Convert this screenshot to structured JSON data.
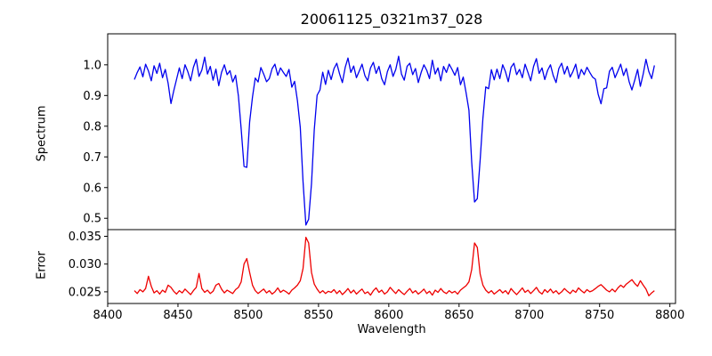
{
  "chart_data": {
    "type": "line",
    "title": "20061125_0321m37_028",
    "xlabel": "Wavelength",
    "xlim": [
      8400,
      8804
    ],
    "xticks": {
      "values": [
        8400,
        8450,
        8500,
        8550,
        8600,
        8650,
        8700,
        8750,
        8800
      ],
      "labels": [
        "8400",
        "8450",
        "8500",
        "8550",
        "8600",
        "8650",
        "8700",
        "8750",
        "8800"
      ]
    },
    "x_start": 8419,
    "x_step": 2,
    "grid": false,
    "legend": "none",
    "panels": [
      {
        "name": "spectrum",
        "ylabel": "Spectrum",
        "color": "#0000ee",
        "ylim": [
          0.463,
          1.101
        ],
        "yticks": {
          "values": [
            0.5,
            0.6,
            0.7,
            0.8,
            0.9,
            1.0
          ],
          "labels": [
            "0.5",
            "0.6",
            "0.7",
            "0.8",
            "0.9",
            "1.0"
          ]
        },
        "absorption_lines": [
          {
            "wavelength": 8446,
            "depth_flux": 0.87
          },
          {
            "wavelength": 8498,
            "depth_flux": 0.66
          },
          {
            "wavelength": 8542,
            "depth_flux": 0.48
          },
          {
            "wavelength": 8662,
            "depth_flux": 0.55
          },
          {
            "wavelength": 8751,
            "depth_flux": 0.87
          }
        ],
        "values": [
          0.952,
          0.975,
          0.993,
          0.961,
          1.002,
          0.98,
          0.948,
          0.997,
          0.972,
          1.005,
          0.958,
          0.985,
          0.94,
          0.874,
          0.915,
          0.953,
          0.99,
          0.955,
          1.0,
          0.978,
          0.948,
          0.992,
          1.018,
          0.962,
          0.983,
          1.025,
          0.97,
          0.995,
          0.95,
          0.986,
          0.932,
          0.975,
          1.0,
          0.968,
          0.981,
          0.944,
          0.966,
          0.898,
          0.79,
          0.669,
          0.666,
          0.814,
          0.895,
          0.957,
          0.944,
          0.991,
          0.97,
          0.945,
          0.955,
          0.988,
          1.002,
          0.966,
          0.99,
          0.975,
          0.962,
          0.985,
          0.927,
          0.946,
          0.883,
          0.796,
          0.619,
          0.478,
          0.497,
          0.613,
          0.788,
          0.901,
          0.918,
          0.976,
          0.936,
          0.982,
          0.952,
          0.988,
          1.005,
          0.97,
          0.942,
          0.992,
          1.022,
          0.975,
          0.996,
          0.958,
          0.98,
          1.002,
          0.965,
          0.948,
          0.99,
          1.008,
          0.972,
          0.995,
          0.955,
          0.935,
          0.978,
          1.0,
          0.962,
          0.985,
          1.028,
          0.97,
          0.95,
          0.995,
          1.005,
          0.968,
          0.988,
          0.942,
          0.975,
          1.0,
          0.982,
          0.955,
          1.015,
          0.97,
          0.99,
          0.948,
          0.995,
          0.975,
          1.002,
          0.985,
          0.966,
          0.991,
          0.935,
          0.96,
          0.909,
          0.852,
          0.683,
          0.553,
          0.564,
          0.69,
          0.826,
          0.928,
          0.922,
          0.984,
          0.951,
          0.986,
          0.955,
          1.0,
          0.978,
          0.945,
          0.992,
          1.005,
          0.968,
          0.985,
          0.958,
          1.002,
          0.975,
          0.948,
          0.995,
          1.02,
          0.972,
          0.99,
          0.952,
          0.982,
          1.0,
          0.965,
          0.942,
          0.988,
          1.005,
          0.97,
          0.995,
          0.96,
          0.978,
          1.002,
          0.955,
          0.985,
          0.968,
          0.992,
          0.975,
          0.96,
          0.953,
          0.904,
          0.873,
          0.922,
          0.925,
          0.979,
          0.992,
          0.958,
          0.98,
          1.002,
          0.965,
          0.988,
          0.945,
          0.918,
          0.95,
          0.985,
          0.93,
          0.97,
          1.018,
          0.978,
          0.955,
          0.998
        ]
      },
      {
        "name": "error",
        "ylabel": "Error",
        "color": "#ee0000",
        "ylim": [
          0.0229,
          0.0362
        ],
        "yticks": {
          "values": [
            0.025,
            0.03,
            0.035
          ],
          "labels": [
            "0.025",
            "0.030",
            "0.035"
          ]
        },
        "values": [
          0.0252,
          0.0247,
          0.0254,
          0.025,
          0.0256,
          0.0278,
          0.026,
          0.0248,
          0.0252,
          0.0246,
          0.0253,
          0.0249,
          0.0262,
          0.0258,
          0.0251,
          0.0246,
          0.0252,
          0.0248,
          0.0255,
          0.025,
          0.0245,
          0.0252,
          0.0258,
          0.0283,
          0.0256,
          0.0249,
          0.0253,
          0.0247,
          0.0251,
          0.0262,
          0.0265,
          0.0255,
          0.0248,
          0.0253,
          0.025,
          0.0247,
          0.0254,
          0.0258,
          0.0268,
          0.03,
          0.031,
          0.0285,
          0.0262,
          0.0252,
          0.0247,
          0.0251,
          0.0255,
          0.0248,
          0.0252,
          0.0246,
          0.025,
          0.0257,
          0.0249,
          0.0253,
          0.025,
          0.0246,
          0.0253,
          0.0257,
          0.0262,
          0.027,
          0.0292,
          0.0348,
          0.0338,
          0.0285,
          0.0264,
          0.0255,
          0.0248,
          0.0252,
          0.0247,
          0.0251,
          0.0249,
          0.0254,
          0.0247,
          0.0252,
          0.0245,
          0.025,
          0.0256,
          0.0248,
          0.0253,
          0.0246,
          0.0251,
          0.0255,
          0.0247,
          0.025,
          0.0244,
          0.0252,
          0.0257,
          0.0249,
          0.0253,
          0.0246,
          0.025,
          0.0258,
          0.0252,
          0.0247,
          0.0254,
          0.0249,
          0.0245,
          0.0251,
          0.0256,
          0.0248,
          0.0252,
          0.0246,
          0.025,
          0.0255,
          0.0247,
          0.0251,
          0.0244,
          0.0253,
          0.0249,
          0.0256,
          0.025,
          0.0247,
          0.0252,
          0.0248,
          0.0251,
          0.0246,
          0.0253,
          0.0257,
          0.0261,
          0.0268,
          0.029,
          0.0338,
          0.033,
          0.0282,
          0.0262,
          0.0253,
          0.0248,
          0.0252,
          0.0246,
          0.025,
          0.0254,
          0.0248,
          0.0252,
          0.0246,
          0.0256,
          0.025,
          0.0245,
          0.0251,
          0.0257,
          0.0249,
          0.0253,
          0.0247,
          0.0252,
          0.0258,
          0.025,
          0.0246,
          0.0254,
          0.0249,
          0.0255,
          0.0248,
          0.0252,
          0.0246,
          0.025,
          0.0256,
          0.0251,
          0.0247,
          0.0253,
          0.0249,
          0.0257,
          0.0252,
          0.0248,
          0.0254,
          0.025,
          0.0252,
          0.0256,
          0.026,
          0.0263,
          0.0258,
          0.0253,
          0.025,
          0.0255,
          0.025,
          0.0257,
          0.0262,
          0.0258,
          0.0264,
          0.0268,
          0.0272,
          0.0265,
          0.026,
          0.027,
          0.0262,
          0.0255,
          0.0243,
          0.0248,
          0.0252
        ]
      }
    ]
  }
}
